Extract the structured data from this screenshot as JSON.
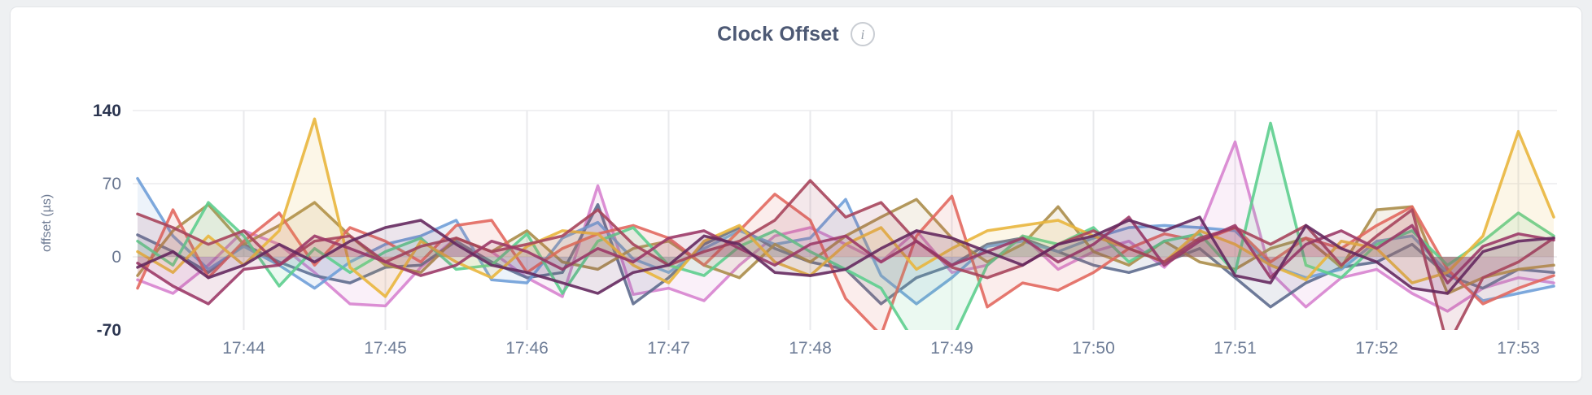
{
  "page": {
    "background": "#eef0f2"
  },
  "card": {
    "background": "#ffffff",
    "border_color": "#e3e5e8"
  },
  "header": {
    "title": "Clock Offset",
    "info_icon_glyph": "i"
  },
  "axis_style": {
    "tick_color": "#68758f",
    "tick_color_extremes": "#2b3550",
    "grid_color": "#e9eaec"
  },
  "chart_data": {
    "type": "line",
    "title": "Clock Offset",
    "xlabel": "",
    "ylabel": "offset (µs)",
    "x_start": "17:43:15",
    "x_step_seconds": 15,
    "x_ticks": [
      "17:44",
      "17:45",
      "17:46",
      "17:47",
      "17:48",
      "17:49",
      "17:50",
      "17:51",
      "17:52",
      "17:53"
    ],
    "y_ticks": [
      140,
      70,
      0,
      -70
    ],
    "y_ticks_emphasized": [
      140,
      -70
    ],
    "ylim": [
      -70,
      165
    ],
    "grid": true,
    "legend": "none",
    "area_fill_opacity": 0.12,
    "series": [
      {
        "name": "orchid",
        "color": "#d783cf",
        "values": [
          -22,
          -35,
          -8,
          25,
          12,
          -15,
          -45,
          -47,
          -10,
          18,
          5,
          -20,
          -38,
          68,
          -36,
          -30,
          -42,
          -8,
          20,
          28,
          12,
          -5,
          25,
          -15,
          -8,
          20,
          -12,
          5,
          15,
          -10,
          25,
          110,
          -15,
          -48,
          -20,
          -12,
          -35,
          -52,
          -30,
          -20,
          -25
        ]
      },
      {
        "name": "slate",
        "color": "#5e6b8e",
        "values": [
          21,
          5,
          -15,
          12,
          -5,
          -18,
          -25,
          -10,
          -8,
          15,
          -5,
          -20,
          -15,
          50,
          -45,
          -20,
          12,
          28,
          8,
          -5,
          -12,
          -45,
          -20,
          -8,
          12,
          18,
          5,
          -8,
          -15,
          -5,
          8,
          -20,
          -48,
          -25,
          -10,
          -5,
          12,
          -18,
          -30,
          -12,
          -15
        ]
      },
      {
        "name": "blue",
        "color": "#6f9fd8",
        "values": [
          75,
          20,
          -12,
          10,
          -8,
          -30,
          -5,
          12,
          20,
          35,
          -22,
          -25,
          18,
          33,
          -2,
          -15,
          8,
          25,
          12,
          18,
          55,
          -18,
          -45,
          -20,
          10,
          15,
          5,
          18,
          28,
          30,
          28,
          25,
          -8,
          -20,
          -12,
          15,
          20,
          -15,
          -42,
          -35,
          -28
        ]
      },
      {
        "name": "olive",
        "color": "#ab8d4a",
        "values": [
          -18,
          25,
          50,
          12,
          30,
          52,
          20,
          -8,
          -15,
          18,
          5,
          25,
          -5,
          -12,
          8,
          15,
          -8,
          -20,
          12,
          -5,
          20,
          38,
          55,
          18,
          -5,
          12,
          48,
          5,
          -8,
          15,
          -5,
          -12,
          8,
          18,
          -10,
          45,
          48,
          -35,
          -20,
          -12,
          -8
        ]
      },
      {
        "name": "red",
        "color": "#e2685f",
        "values": [
          -30,
          45,
          -20,
          15,
          42,
          -8,
          28,
          15,
          -5,
          30,
          35,
          -15,
          8,
          22,
          30,
          18,
          -8,
          25,
          60,
          35,
          -40,
          -75,
          20,
          58,
          -48,
          -25,
          -32,
          -15,
          8,
          22,
          15,
          28,
          -5,
          18,
          8,
          30,
          48,
          -12,
          -45,
          -30,
          -18
        ]
      },
      {
        "name": "green",
        "color": "#5dce8e",
        "values": [
          15,
          -8,
          52,
          20,
          -28,
          8,
          -15,
          5,
          18,
          -12,
          -8,
          22,
          -35,
          15,
          28,
          -8,
          -18,
          10,
          25,
          5,
          -12,
          -30,
          -85,
          -80,
          -8,
          20,
          12,
          28,
          -5,
          15,
          22,
          -15,
          128,
          -8,
          -20,
          12,
          25,
          -8,
          15,
          42,
          20
        ]
      },
      {
        "name": "gold",
        "color": "#e9b63d",
        "values": [
          5,
          -15,
          20,
          -8,
          25,
          132,
          -10,
          -38,
          15,
          -5,
          -20,
          10,
          25,
          22,
          -8,
          -25,
          15,
          30,
          -5,
          -18,
          12,
          28,
          -12,
          8,
          25,
          30,
          35,
          20,
          8,
          -5,
          25,
          12,
          -8,
          -22,
          15,
          8,
          -25,
          -15,
          20,
          120,
          38
        ]
      },
      {
        "name": "maroon",
        "color": "#a7455c",
        "values": [
          41,
          28,
          12,
          25,
          -8,
          15,
          20,
          -5,
          10,
          18,
          5,
          12,
          20,
          45,
          12,
          -8,
          5,
          15,
          35,
          73,
          38,
          52,
          15,
          -10,
          -20,
          -8,
          12,
          25,
          8,
          -5,
          18,
          28,
          12,
          30,
          -8,
          20,
          45,
          -85,
          -20,
          -5,
          18
        ]
      },
      {
        "name": "wine",
        "color": "#9c3a68",
        "values": [
          -6,
          -28,
          -45,
          -12,
          -8,
          20,
          8,
          -5,
          -18,
          -8,
          15,
          5,
          -12,
          8,
          -5,
          18,
          25,
          8,
          -8,
          12,
          20,
          -5,
          15,
          -8,
          5,
          18,
          -5,
          12,
          38,
          -8,
          15,
          30,
          -20,
          12,
          25,
          8,
          30,
          -25,
          10,
          22,
          16
        ]
      },
      {
        "name": "purple",
        "color": "#65295f",
        "values": [
          -10,
          5,
          -20,
          -8,
          12,
          -5,
          15,
          28,
          35,
          12,
          -8,
          -15,
          -25,
          -35,
          -15,
          -8,
          20,
          12,
          -15,
          -18,
          -12,
          8,
          25,
          18,
          5,
          -8,
          12,
          20,
          35,
          25,
          38,
          -18,
          -25,
          30,
          8,
          -5,
          -30,
          -35,
          5,
          15,
          18
        ]
      }
    ]
  }
}
